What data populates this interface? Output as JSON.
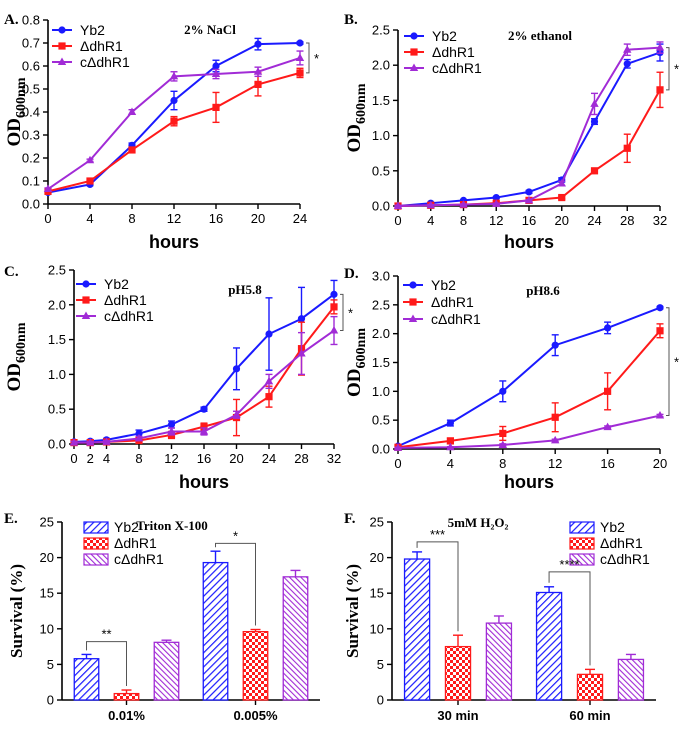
{
  "colors": {
    "yb2": "#1a1aff",
    "dhr1": "#ff1a1a",
    "cdhr1": "#a12bd6",
    "axis": "#000000"
  },
  "chart_data": [
    {
      "type": "line",
      "panel": "A.",
      "title": "2% NaCl",
      "xlabel": "hours",
      "ylabel_main": "OD",
      "ylabel_sub": "600nm",
      "x": [
        0,
        4,
        8,
        12,
        16,
        20,
        24
      ],
      "xlim": [
        0,
        24
      ],
      "ylim": [
        0,
        0.8
      ],
      "xticks": [
        "0",
        "4",
        "8",
        "12",
        "16",
        "20",
        "24"
      ],
      "yticks": [
        "0.0",
        "0.1",
        "0.2",
        "0.3",
        "0.4",
        "0.5",
        "0.6",
        "0.7",
        "0.8"
      ],
      "legend": "top-left",
      "significance": "*",
      "series": [
        {
          "name": "Yb2",
          "marker": "circle",
          "values": [
            0.05,
            0.085,
            0.255,
            0.45,
            0.6,
            0.695,
            0.7
          ],
          "errors": [
            0.005,
            0.005,
            0.01,
            0.04,
            0.025,
            0.025,
            0.005
          ]
        },
        {
          "name": "ΔdhR1",
          "marker": "square",
          "values": [
            0.055,
            0.1,
            0.235,
            0.36,
            0.42,
            0.52,
            0.57
          ],
          "errors": [
            0.005,
            0.005,
            0.01,
            0.02,
            0.065,
            0.05,
            0.02
          ]
        },
        {
          "name": "cΔdhR1",
          "marker": "triangle",
          "values": [
            0.065,
            0.19,
            0.4,
            0.555,
            0.565,
            0.575,
            0.635
          ],
          "errors": [
            0.005,
            0.005,
            0.01,
            0.02,
            0.02,
            0.02,
            0.03
          ]
        }
      ]
    },
    {
      "type": "line",
      "panel": "B.",
      "title": "2% ethanol",
      "xlabel": "hours",
      "ylabel_main": "OD",
      "ylabel_sub": "600nm",
      "x": [
        0,
        4,
        8,
        12,
        16,
        20,
        24,
        28,
        32
      ],
      "xlim": [
        0,
        32
      ],
      "ylim": [
        0,
        2.5
      ],
      "xticks": [
        "0",
        "4",
        "8",
        "12",
        "16",
        "20",
        "24",
        "28",
        "32"
      ],
      "yticks": [
        "0.0",
        "0.5",
        "1.0",
        "1.5",
        "2.0",
        "2.5"
      ],
      "legend": "top-left",
      "significance": "*",
      "series": [
        {
          "name": "Yb2",
          "marker": "circle",
          "values": [
            0.0,
            0.04,
            0.08,
            0.12,
            0.2,
            0.37,
            1.2,
            2.02,
            2.18
          ],
          "errors": [
            0.01,
            0.01,
            0.01,
            0.01,
            0.02,
            0.03,
            0.04,
            0.06,
            0.12
          ]
        },
        {
          "name": "ΔdhR1",
          "marker": "square",
          "values": [
            0.0,
            0.01,
            0.02,
            0.04,
            0.08,
            0.12,
            0.5,
            0.82,
            1.65
          ],
          "errors": [
            0.01,
            0.01,
            0.01,
            0.01,
            0.01,
            0.02,
            0.03,
            0.2,
            0.25
          ]
        },
        {
          "name": "cΔdhR1",
          "marker": "triangle",
          "values": [
            0.0,
            0.01,
            0.02,
            0.03,
            0.08,
            0.32,
            1.45,
            2.22,
            2.25
          ],
          "errors": [
            0.01,
            0.01,
            0.01,
            0.01,
            0.01,
            0.03,
            0.15,
            0.08,
            0.08
          ]
        }
      ]
    },
    {
      "type": "line",
      "panel": "C.",
      "title": "pH5.8",
      "xlabel": "hours",
      "ylabel_main": "OD",
      "ylabel_sub": "600nm",
      "x": [
        0,
        2,
        4,
        8,
        12,
        16,
        20,
        24,
        28,
        32
      ],
      "xlim": [
        0,
        32
      ],
      "ylim": [
        0,
        2.5
      ],
      "xticks": [
        "0",
        "2",
        "4",
        "8",
        "12",
        "16",
        "20",
        "24",
        "28",
        "32"
      ],
      "yticks": [
        "0.0",
        "0.5",
        "1.0",
        "1.5",
        "2.0",
        "2.5"
      ],
      "legend": "top-left",
      "significance": "*",
      "series": [
        {
          "name": "Yb2",
          "marker": "circle",
          "values": [
            0.03,
            0.04,
            0.06,
            0.15,
            0.28,
            0.5,
            1.08,
            1.58,
            1.8,
            2.15
          ],
          "errors": [
            0.02,
            0.02,
            0.02,
            0.05,
            0.05,
            0.03,
            0.3,
            0.52,
            0.45,
            0.2
          ]
        },
        {
          "name": "ΔdhR1",
          "marker": "square",
          "values": [
            0.02,
            0.02,
            0.03,
            0.05,
            0.13,
            0.25,
            0.38,
            0.68,
            1.37,
            1.97
          ],
          "errors": [
            0.02,
            0.02,
            0.02,
            0.03,
            0.05,
            0.05,
            0.26,
            0.15,
            0.38,
            0.1
          ]
        },
        {
          "name": "cΔdhR1",
          "marker": "triangle",
          "values": [
            0.02,
            0.02,
            0.03,
            0.08,
            0.18,
            0.18,
            0.42,
            0.9,
            1.3,
            1.63
          ],
          "errors": [
            0.02,
            0.02,
            0.02,
            0.03,
            0.05,
            0.05,
            0.05,
            0.1,
            0.3,
            0.2
          ]
        }
      ]
    },
    {
      "type": "line",
      "panel": "D.",
      "title": "pH8.6",
      "xlabel": "hours",
      "ylabel_main": "OD",
      "ylabel_sub": "600nm",
      "x": [
        0,
        4,
        8,
        12,
        16,
        20
      ],
      "xlim": [
        0,
        20
      ],
      "ylim": [
        0,
        3.0
      ],
      "xticks": [
        "0",
        "4",
        "8",
        "12",
        "16",
        "20"
      ],
      "yticks": [
        "0.0",
        "0.5",
        "1.0",
        "1.5",
        "2.0",
        "2.5",
        "3.0"
      ],
      "legend": "top-left",
      "significance": "*",
      "series": [
        {
          "name": "Yb2",
          "marker": "circle",
          "values": [
            0.05,
            0.45,
            1.0,
            1.8,
            2.1,
            2.45
          ],
          "errors": [
            0.02,
            0.05,
            0.18,
            0.18,
            0.1,
            0.02
          ]
        },
        {
          "name": "ΔdhR1",
          "marker": "square",
          "values": [
            0.03,
            0.14,
            0.27,
            0.55,
            1.0,
            2.05
          ],
          "errors": [
            0.02,
            0.05,
            0.12,
            0.25,
            0.32,
            0.12
          ]
        },
        {
          "name": "cΔdhR1",
          "marker": "triangle",
          "values": [
            0.02,
            0.03,
            0.07,
            0.15,
            0.38,
            0.58
          ],
          "errors": [
            0.01,
            0.01,
            0.02,
            0.02,
            0.02,
            0.02
          ]
        }
      ]
    },
    {
      "type": "bar",
      "panel": "E.",
      "title": "Triton X-100",
      "ylabel": "Survival (%)",
      "categories": [
        "0.01%",
        "0.005%"
      ],
      "ylim": [
        0,
        25
      ],
      "yticks": [
        "0",
        "5",
        "10",
        "15",
        "20",
        "25"
      ],
      "legend": "top-left",
      "series": [
        {
          "name": "Yb2",
          "pattern": "hatch",
          "values": [
            5.8,
            19.3
          ],
          "errors": [
            0.6,
            1.6
          ]
        },
        {
          "name": "ΔdhR1",
          "pattern": "checker",
          "values": [
            0.9,
            9.6
          ],
          "errors": [
            0.5,
            0.3
          ]
        },
        {
          "name": "cΔdhR1",
          "pattern": "hlines",
          "values": [
            8.1,
            17.3
          ],
          "errors": [
            0.3,
            0.9
          ]
        }
      ],
      "significance": [
        {
          "label": "**",
          "category": 0,
          "from": 0,
          "to": 1,
          "level": 8.2
        },
        {
          "label": "*",
          "category": 1,
          "from": 0,
          "to": 1,
          "level": 22.0
        }
      ]
    },
    {
      "type": "bar",
      "panel": "F.",
      "title": "5mM H₂O₂",
      "ylabel": "Survival (%)",
      "categories": [
        "30 min",
        "60 min"
      ],
      "ylim": [
        0,
        25
      ],
      "yticks": [
        "0",
        "5",
        "10",
        "15",
        "20",
        "25"
      ],
      "legend": "top-right",
      "series": [
        {
          "name": "Yb2",
          "pattern": "hatch",
          "values": [
            19.8,
            15.1
          ],
          "errors": [
            1.0,
            0.8
          ]
        },
        {
          "name": "ΔdhR1",
          "pattern": "checker",
          "values": [
            7.5,
            3.6
          ],
          "errors": [
            1.6,
            0.7
          ]
        },
        {
          "name": "cΔdhR1",
          "pattern": "hlines",
          "values": [
            10.8,
            5.7
          ],
          "errors": [
            1.0,
            0.7
          ]
        }
      ],
      "significance": [
        {
          "label": "***",
          "category": 0,
          "from": 0,
          "to": 1,
          "level": 22.2
        },
        {
          "label": "****",
          "category": 1,
          "from": 0,
          "to": 1,
          "level": 18.0
        }
      ]
    }
  ]
}
